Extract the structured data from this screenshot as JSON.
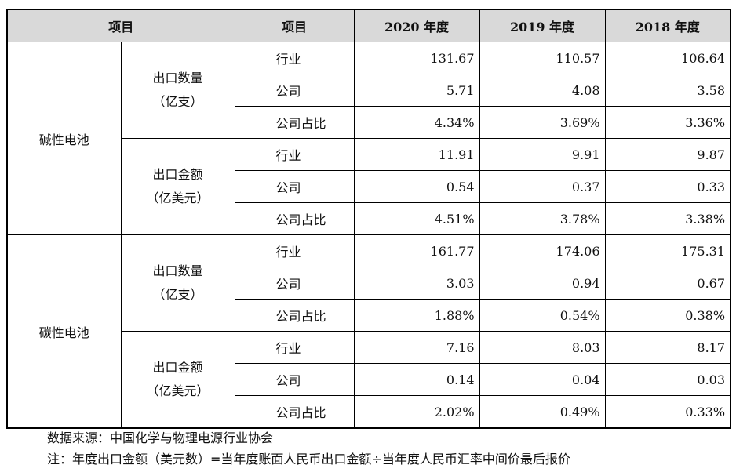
{
  "header": {
    "item1": "项目",
    "item2": "项目",
    "y2020": "2020 年度",
    "y2019": "2019 年度",
    "y2018": "2018 年度"
  },
  "groups": [
    {
      "category": "碱性电池",
      "subgroups": [
        {
          "label_line1": "出口数量",
          "label_line2": "（亿支）",
          "rows": [
            {
              "metric": "行业",
              "v2020": "131.67",
              "v2019": "110.57",
              "v2018": "106.64"
            },
            {
              "metric": "公司",
              "v2020": "5.71",
              "v2019": "4.08",
              "v2018": "3.58"
            },
            {
              "metric": "公司占比",
              "v2020": "4.34%",
              "v2019": "3.69%",
              "v2018": "3.36%"
            }
          ]
        },
        {
          "label_line1": "出口金额",
          "label_line2": "（亿美元）",
          "rows": [
            {
              "metric": "行业",
              "v2020": "11.91",
              "v2019": "9.91",
              "v2018": "9.87"
            },
            {
              "metric": "公司",
              "v2020": "0.54",
              "v2019": "0.37",
              "v2018": "0.33"
            },
            {
              "metric": "公司占比",
              "v2020": "4.51%",
              "v2019": "3.78%",
              "v2018": "3.38%"
            }
          ]
        }
      ]
    },
    {
      "category": "碳性电池",
      "subgroups": [
        {
          "label_line1": "出口数量",
          "label_line2": "（亿支）",
          "rows": [
            {
              "metric": "行业",
              "v2020": "161.77",
              "v2019": "174.06",
              "v2018": "175.31"
            },
            {
              "metric": "公司",
              "v2020": "3.03",
              "v2019": "0.94",
              "v2018": "0.67"
            },
            {
              "metric": "公司占比",
              "v2020": "1.88%",
              "v2019": "0.54%",
              "v2018": "0.38%"
            }
          ]
        },
        {
          "label_line1": "出口金额",
          "label_line2": "（亿美元）",
          "rows": [
            {
              "metric": "行业",
              "v2020": "7.16",
              "v2019": "8.03",
              "v2018": "8.17"
            },
            {
              "metric": "公司",
              "v2020": "0.14",
              "v2019": "0.04",
              "v2018": "0.03"
            },
            {
              "metric": "公司占比",
              "v2020": "2.02%",
              "v2019": "0.49%",
              "v2018": "0.33%"
            }
          ]
        }
      ]
    }
  ],
  "notes": {
    "source": "数据来源：中国化学与物理电源行业协会",
    "note": "注：年度出口金额（美元数）=当年度账面人民币出口金额÷当年度人民币汇率中间价最后报价"
  }
}
